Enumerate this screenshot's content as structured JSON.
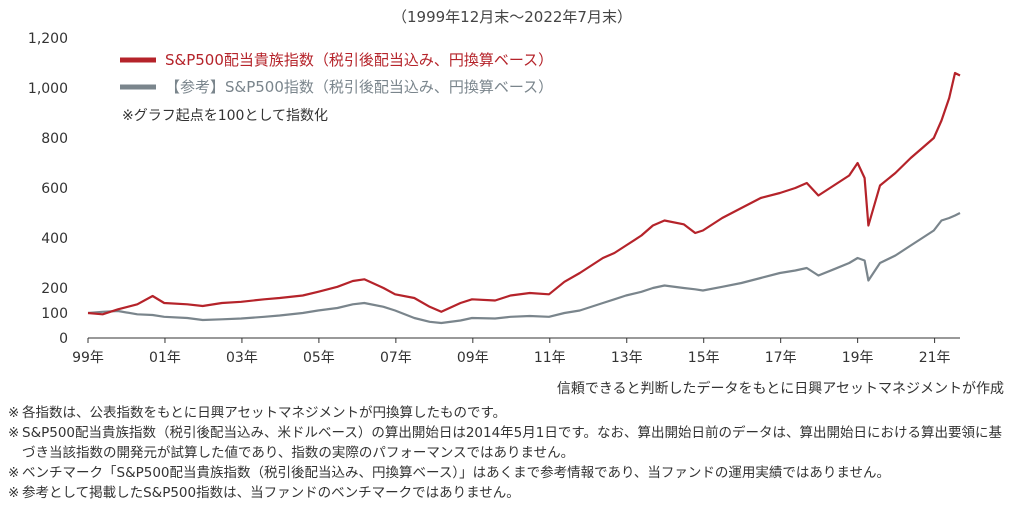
{
  "period_label": "（1999年12月末～2022年7月末）",
  "source_text": "信頼できると判断したデータをもとに日興アセットマネジメントが作成",
  "notes": [
    {
      "mark": "※",
      "text": "各指数は、公表指数をもとに日興アセットマネジメントが円換算したものです。"
    },
    {
      "mark": "※",
      "text": "S&P500配当貴族指数（税引後配当込み、米ドルベース）の算出開始日は2014年5月1日です。なお、算出開始日前のデータは、算出開始日における算出要領に基づき当該指数の開発元が試算した値であり、指数の実際のパフォーマンスではありません。"
    },
    {
      "mark": "※",
      "text": "ベンチマーク「S&P500配当貴族指数（税引後配当込み、円換算ベース）」はあくまで参考情報であり、当ファンドの運用実績ではありません。"
    },
    {
      "mark": "※",
      "text": "参考として掲載したS&P500指数は、当ファンドのベンチマークではありません。"
    }
  ],
  "chart_data": {
    "type": "line",
    "note": "※グラフ起点を100として指数化",
    "xlabel": "",
    "ylabel": "",
    "ylim": [
      0,
      1200
    ],
    "xlim": [
      1999.92,
      2022.58
    ],
    "y_ticks": [
      0,
      100,
      200,
      400,
      600,
      800,
      "1,000",
      "1,200"
    ],
    "y_tick_values": [
      0,
      100,
      200,
      400,
      600,
      800,
      1000,
      1200
    ],
    "x_ticks": [
      "99年",
      "01年",
      "03年",
      "05年",
      "07年",
      "09年",
      "11年",
      "13年",
      "15年",
      "17年",
      "19年",
      "21年"
    ],
    "x_tick_values": [
      1999.92,
      2001.92,
      2003.92,
      2005.92,
      2007.92,
      2009.92,
      2011.92,
      2013.92,
      2015.92,
      2017.92,
      2019.92,
      2021.92
    ],
    "grid": false,
    "legend_position": "top-left",
    "series": [
      {
        "name": "S&P500配当貴族指数（税引後配当込み、円換算ベース）",
        "color": "#b5232a",
        "x": [
          1999.92,
          2000.3,
          2000.7,
          2001.2,
          2001.6,
          2001.9,
          2002.5,
          2002.9,
          2003.4,
          2003.9,
          2004.5,
          2004.9,
          2005.5,
          2005.9,
          2006.4,
          2006.8,
          2007.1,
          2007.6,
          2007.9,
          2008.4,
          2008.8,
          2009.1,
          2009.6,
          2009.9,
          2010.5,
          2010.9,
          2011.4,
          2011.9,
          2012.3,
          2012.7,
          2012.9,
          2013.3,
          2013.6,
          2013.9,
          2014.3,
          2014.6,
          2014.9,
          2015.4,
          2015.7,
          2015.9,
          2016.4,
          2016.9,
          2017.4,
          2017.9,
          2018.3,
          2018.6,
          2018.9,
          2019.3,
          2019.7,
          2019.92,
          2020.1,
          2020.2,
          2020.5,
          2020.9,
          2021.3,
          2021.6,
          2021.9,
          2022.1,
          2022.3,
          2022.45,
          2022.58
        ],
        "values": [
          100,
          95,
          115,
          135,
          168,
          140,
          135,
          128,
          140,
          145,
          155,
          160,
          170,
          185,
          205,
          228,
          235,
          200,
          175,
          160,
          125,
          105,
          140,
          155,
          150,
          170,
          180,
          175,
          225,
          260,
          280,
          320,
          340,
          370,
          410,
          450,
          470,
          455,
          420,
          430,
          480,
          520,
          560,
          580,
          600,
          620,
          570,
          610,
          650,
          700,
          640,
          450,
          610,
          660,
          720,
          760,
          800,
          870,
          960,
          1060,
          1050
        ]
      },
      {
        "name": "【参考】S&P500指数（税引後配当込み、円換算ベース）",
        "color": "#7a858c",
        "x": [
          1999.92,
          2000.3,
          2000.7,
          2001.2,
          2001.6,
          2001.9,
          2002.5,
          2002.9,
          2003.4,
          2003.9,
          2004.5,
          2004.9,
          2005.5,
          2005.9,
          2006.4,
          2006.8,
          2007.1,
          2007.6,
          2007.9,
          2008.4,
          2008.8,
          2009.1,
          2009.6,
          2009.9,
          2010.5,
          2010.9,
          2011.4,
          2011.9,
          2012.3,
          2012.7,
          2012.9,
          2013.3,
          2013.6,
          2013.9,
          2014.3,
          2014.6,
          2014.9,
          2015.4,
          2015.7,
          2015.9,
          2016.4,
          2016.9,
          2017.4,
          2017.9,
          2018.3,
          2018.6,
          2018.9,
          2019.3,
          2019.7,
          2019.92,
          2020.1,
          2020.2,
          2020.5,
          2020.9,
          2021.3,
          2021.6,
          2021.9,
          2022.1,
          2022.3,
          2022.45,
          2022.58
        ],
        "values": [
          100,
          105,
          108,
          95,
          92,
          85,
          80,
          72,
          75,
          78,
          85,
          90,
          100,
          110,
          120,
          135,
          140,
          125,
          110,
          80,
          65,
          60,
          70,
          80,
          78,
          85,
          88,
          85,
          100,
          110,
          120,
          140,
          155,
          170,
          185,
          200,
          210,
          200,
          195,
          190,
          205,
          220,
          240,
          260,
          270,
          280,
          250,
          275,
          300,
          320,
          310,
          230,
          300,
          330,
          370,
          400,
          430,
          470,
          480,
          490,
          500
        ]
      }
    ]
  }
}
